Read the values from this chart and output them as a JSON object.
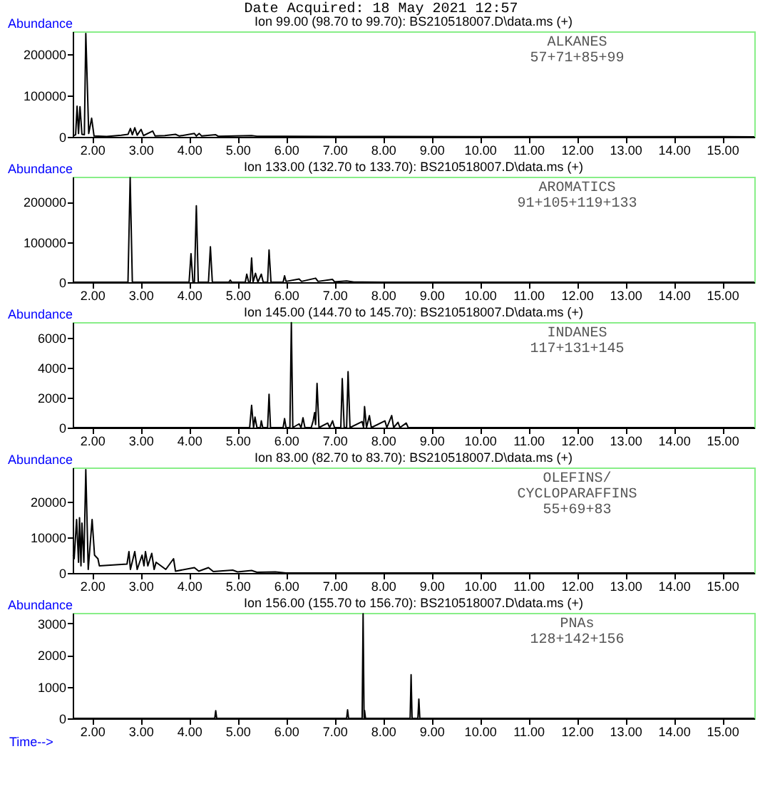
{
  "chart_data": [
    {
      "type": "line",
      "title": "Date Acquired: 18 May 2021 12:57",
      "subtitle": "Ion 99.00 (98.70 to 99.70): BS210518007.D\\data.ms (+)",
      "ylabel": "Abundance",
      "annotations": [
        "ALKANES",
        "57+71+85+99"
      ],
      "x": [
        1.62,
        1.66,
        1.69,
        1.72,
        1.75,
        1.79,
        1.84,
        1.87,
        1.93,
        1.99,
        2.04,
        2.3,
        2.6,
        2.74,
        2.79,
        2.83,
        2.88,
        2.93,
        3.01,
        3.06,
        3.25,
        3.3,
        3.5,
        3.72,
        3.8,
        4.11,
        4.15,
        4.21,
        4.26,
        4.55,
        4.6,
        5.29,
        5.4,
        6.0,
        7.0,
        8.0,
        10.0,
        12.0,
        15.66
      ],
      "series": [
        {
          "color": "#000000",
          "values": [
            3000,
            5000,
            74000,
            8000,
            73000,
            6000,
            5000,
            250000,
            8000,
            45000,
            2000,
            1000,
            4000,
            6000,
            20000,
            5000,
            22000,
            4000,
            18000,
            3000,
            14000,
            2000,
            3000,
            6000,
            2000,
            8000,
            2000,
            8000,
            2000,
            5000,
            1500,
            3000,
            1500,
            1500,
            1000,
            800,
            500,
            300,
            200
          ]
        }
      ],
      "xlim": [
        1.6,
        15.66
      ],
      "ylim": [
        0,
        255000
      ],
      "yticks": [
        0,
        100000,
        200000
      ],
      "line_style": "solid",
      "xticks": [
        {
          "value": 2,
          "label": "2.00"
        },
        {
          "value": 3,
          "label": "3.00"
        },
        {
          "value": 4,
          "label": "4.00"
        },
        {
          "value": 5,
          "label": "5.00"
        },
        {
          "value": 6,
          "label": "6.00"
        },
        {
          "value": 7,
          "label": "7.00"
        },
        {
          "value": 8,
          "label": "8.00"
        },
        {
          "value": 9,
          "label": "9.00"
        },
        {
          "value": 10,
          "label": "10.00"
        },
        {
          "value": 11,
          "label": "11.00"
        },
        {
          "value": 12,
          "label": "12.00"
        },
        {
          "value": 13,
          "label": "13.00"
        },
        {
          "value": 14,
          "label": "14.00"
        },
        {
          "value": 15,
          "label": "15.00"
        }
      ],
      "grid": false
    },
    {
      "type": "line",
      "subtitle": "Ion 133.00 (132.70 to 133.70): BS210518007.D\\data.ms (+)",
      "ylabel": "Abundance",
      "annotations": [
        "AROMATICS",
        "91+105+119+133"
      ],
      "x": [
        1.62,
        2.74,
        2.785,
        2.83,
        4.0,
        4.04,
        4.08,
        4.11,
        4.15,
        4.19,
        4.4,
        4.44,
        4.48,
        4.82,
        4.85,
        4.88,
        5.16,
        5.19,
        5.23,
        5.26,
        5.29,
        5.32,
        5.37,
        5.42,
        5.49,
        5.53,
        5.62,
        5.65,
        5.69,
        5.94,
        5.97,
        6.0,
        6.27,
        6.32,
        6.61,
        6.66,
        6.96,
        7.0,
        7.25,
        7.4,
        8.0,
        15.66
      ],
      "series": [
        {
          "color": "#000000",
          "values": [
            0,
            0,
            260000,
            0,
            0,
            71000,
            0,
            0,
            190000,
            0,
            0,
            88000,
            0,
            0,
            5000,
            0,
            0,
            20000,
            0,
            0,
            60000,
            0,
            22000,
            0,
            20000,
            0,
            0,
            80000,
            0,
            0,
            16000,
            2000,
            8000,
            2000,
            10000,
            2000,
            7000,
            1000,
            3000,
            500,
            200,
            0
          ]
        }
      ],
      "xlim": [
        1.6,
        15.66
      ],
      "ylim": [
        0,
        262000
      ],
      "yticks": [
        0,
        100000,
        200000
      ],
      "line_style": "solid",
      "xticks": [
        {
          "value": 2,
          "label": "2.00"
        },
        {
          "value": 3,
          "label": "3.00"
        },
        {
          "value": 4,
          "label": "4.00"
        },
        {
          "value": 5,
          "label": "5.00"
        },
        {
          "value": 6,
          "label": "6.00"
        },
        {
          "value": 7,
          "label": "7.00"
        },
        {
          "value": 8,
          "label": "8.00"
        },
        {
          "value": 9,
          "label": "9.00"
        },
        {
          "value": 10,
          "label": "10.00"
        },
        {
          "value": 11,
          "label": "11.00"
        },
        {
          "value": 12,
          "label": "12.00"
        },
        {
          "value": 13,
          "label": "13.00"
        },
        {
          "value": 14,
          "label": "14.00"
        },
        {
          "value": 15,
          "label": "15.00"
        }
      ],
      "grid": false
    },
    {
      "type": "line",
      "subtitle": "Ion 145.00 (144.70 to 145.70): BS210518007.D\\data.ms (+)",
      "ylabel": "Abundance",
      "annotations": [
        "INDANES",
        "117+131+145"
      ],
      "x": [
        1.62,
        5.25,
        5.29,
        5.33,
        5.36,
        5.4,
        5.47,
        5.49,
        5.52,
        5.62,
        5.65,
        5.68,
        5.94,
        5.97,
        6.0,
        6.08,
        6.11,
        6.14,
        6.27,
        6.31,
        6.35,
        6.39,
        6.52,
        6.56,
        6.59,
        6.61,
        6.64,
        6.68,
        6.86,
        6.9,
        6.96,
        7.0,
        7.13,
        7.16,
        7.2,
        7.25,
        7.28,
        7.32,
        7.57,
        7.6,
        7.62,
        7.66,
        7.72,
        7.76,
        8.04,
        8.08,
        8.18,
        8.22,
        8.31,
        8.35,
        8.48,
        8.52,
        15.66
      ],
      "series": [
        {
          "color": "#000000",
          "values": [
            0,
            0,
            1480,
            0,
            700,
            0,
            0,
            450,
            0,
            0,
            2220,
            0,
            0,
            600,
            0,
            0,
            6990,
            0,
            250,
            0,
            650,
            0,
            0,
            450,
            1000,
            200,
            2940,
            0,
            300,
            0,
            450,
            0,
            0,
            3260,
            0,
            0,
            3730,
            0,
            400,
            0,
            1400,
            0,
            800,
            0,
            450,
            0,
            800,
            0,
            350,
            0,
            300,
            0,
            0
          ]
        }
      ],
      "xlim": [
        1.6,
        15.66
      ],
      "ylim": [
        0,
        7030
      ],
      "yticks": [
        0,
        2000,
        4000,
        6000
      ],
      "line_style": "solid",
      "xticks": [
        {
          "value": 2,
          "label": "2.00"
        },
        {
          "value": 3,
          "label": "3.00"
        },
        {
          "value": 4,
          "label": "4.00"
        },
        {
          "value": 5,
          "label": "5.00"
        },
        {
          "value": 6,
          "label": "6.00"
        },
        {
          "value": 7,
          "label": "7.00"
        },
        {
          "value": 8,
          "label": "8.00"
        },
        {
          "value": 9,
          "label": "9.00"
        },
        {
          "value": 10,
          "label": "10.00"
        },
        {
          "value": 11,
          "label": "11.00"
        },
        {
          "value": 12,
          "label": "12.00"
        },
        {
          "value": 13,
          "label": "13.00"
        },
        {
          "value": 14,
          "label": "14.00"
        },
        {
          "value": 15,
          "label": "15.00"
        }
      ],
      "grid": false
    },
    {
      "type": "line",
      "subtitle": "Ion 83.00 (82.70 to 83.70): BS210518007.D\\data.ms (+)",
      "ylabel": "Abundance",
      "annotations": [
        "OLEFINS/",
        "CYCLOPARAFFINS",
        "55+69+83"
      ],
      "x": [
        1.61,
        1.63,
        1.68,
        1.72,
        1.74,
        1.77,
        1.79,
        1.83,
        1.87,
        1.92,
        2.0,
        2.05,
        2.12,
        2.15,
        2.72,
        2.76,
        2.79,
        2.88,
        2.93,
        3.03,
        3.07,
        3.1,
        3.15,
        3.23,
        3.28,
        3.32,
        3.52,
        3.68,
        3.72,
        4.11,
        4.2,
        4.4,
        4.5,
        4.9,
        5.0,
        5.29,
        5.4,
        5.78,
        6.0,
        15.66
      ],
      "series": [
        {
          "color": "#000000",
          "values": [
            5000,
            4000,
            15000,
            3000,
            15500,
            2000,
            14000,
            3000,
            29000,
            1000,
            15000,
            5000,
            4000,
            2000,
            2500,
            6000,
            1000,
            6000,
            1000,
            5000,
            2000,
            6000,
            2000,
            5500,
            1000,
            3000,
            1000,
            4000,
            500,
            1500,
            500,
            1500,
            400,
            800,
            300,
            700,
            200,
            300,
            0,
            0
          ]
        }
      ],
      "xlim": [
        1.6,
        15.66
      ],
      "ylim": [
        0,
        29600
      ],
      "yticks": [
        0,
        10000,
        20000
      ],
      "line_style": "solid",
      "xticks": [
        {
          "value": 2,
          "label": "2.00"
        },
        {
          "value": 3,
          "label": "3.00"
        },
        {
          "value": 4,
          "label": "4.00"
        },
        {
          "value": 5,
          "label": "5.00"
        },
        {
          "value": 6,
          "label": "6.00"
        },
        {
          "value": 7,
          "label": "7.00"
        },
        {
          "value": 8,
          "label": "8.00"
        },
        {
          "value": 9,
          "label": "9.00"
        },
        {
          "value": 10,
          "label": "10.00"
        },
        {
          "value": 11,
          "label": "11.00"
        },
        {
          "value": 12,
          "label": "12.00"
        },
        {
          "value": 13,
          "label": "13.00"
        },
        {
          "value": 14,
          "label": "14.00"
        },
        {
          "value": 15,
          "label": "15.00"
        }
      ],
      "grid": false
    },
    {
      "type": "line",
      "subtitle": "Ion 156.00 (155.70 to 156.70): BS210518007.D\\data.ms (+)",
      "ylabel": "Abundance",
      "xlabel": "Time-->",
      "annotations": [
        "PNAs",
        "128+142+156"
      ],
      "x": [
        1.62,
        4.53,
        4.55,
        4.57,
        7.25,
        7.27,
        7.29,
        7.57,
        7.59,
        7.61,
        7.62,
        7.64,
        8.56,
        8.58,
        8.6,
        8.72,
        8.74,
        8.76,
        15.66
      ],
      "series": [
        {
          "color": "#000000",
          "values": [
            0,
            0,
            240,
            0,
            0,
            270,
            0,
            0,
            3300,
            0,
            250,
            0,
            0,
            1380,
            0,
            0,
            610,
            0,
            0
          ]
        }
      ],
      "xlim": [
        1.6,
        15.66
      ],
      "ylim": [
        0,
        3330
      ],
      "yticks": [
        0,
        1000,
        2000,
        3000
      ],
      "line_style": "solid",
      "xticks": [
        {
          "value": 2,
          "label": "2.00"
        },
        {
          "value": 3,
          "label": "3.00"
        },
        {
          "value": 4,
          "label": "4.00"
        },
        {
          "value": 5,
          "label": "5.00"
        },
        {
          "value": 6,
          "label": "6.00"
        },
        {
          "value": 7,
          "label": "7.00"
        },
        {
          "value": 8,
          "label": "8.00"
        },
        {
          "value": 9,
          "label": "9.00"
        },
        {
          "value": 10,
          "label": "10.00"
        },
        {
          "value": 11,
          "label": "11.00"
        },
        {
          "value": 12,
          "label": "12.00"
        },
        {
          "value": 13,
          "label": "13.00"
        },
        {
          "value": 14,
          "label": "14.00"
        },
        {
          "value": 15,
          "label": "15.00"
        }
      ],
      "grid": false
    }
  ]
}
